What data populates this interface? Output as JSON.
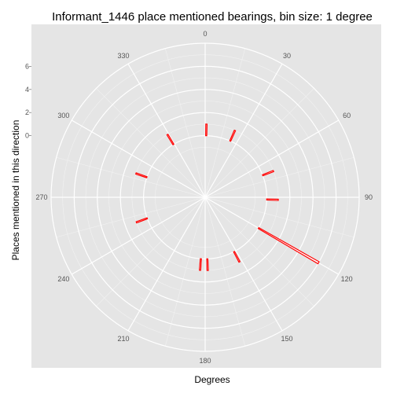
{
  "chart_data": {
    "type": "polar-bar",
    "title": "Informant_1446 place mentioned bearings, bin size: 1 degree",
    "xlabel": "Degrees",
    "ylabel": "Places mentioned in this direction",
    "angle_ticks": [
      "0",
      "30",
      "60",
      "90",
      "120",
      "150",
      "180",
      "210",
      "240",
      "270",
      "300",
      "330"
    ],
    "angle_tick_values": [
      0,
      30,
      60,
      90,
      120,
      150,
      180,
      210,
      240,
      270,
      300,
      330
    ],
    "radial_ticks": [
      "0",
      "2",
      "4",
      "6"
    ],
    "radial_tick_values": [
      0,
      2,
      4,
      6
    ],
    "radial_range": [
      -2,
      8
    ],
    "grid": true,
    "bar_color": "#ff0000",
    "bearings": [
      1,
      24,
      69,
      92,
      120,
      152,
      178,
      184,
      250,
      289,
      329
    ],
    "counts": [
      1,
      1,
      1,
      1,
      6,
      1,
      1,
      1,
      1,
      1,
      1
    ]
  }
}
